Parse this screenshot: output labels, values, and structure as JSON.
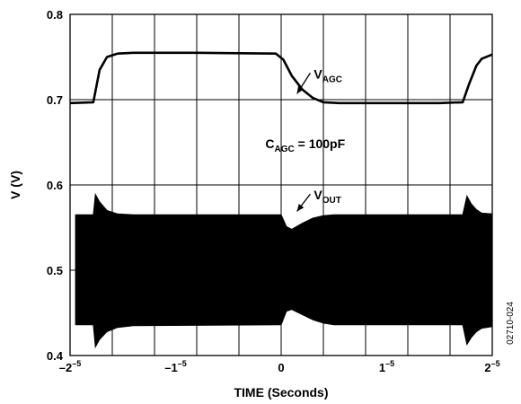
{
  "chart_data": {
    "type": "line",
    "xlabel": "TIME (Seconds)",
    "ylabel": "V (V)",
    "xlim": [
      -2e-05,
      2e-05
    ],
    "ylim": [
      0.4,
      0.8
    ],
    "grid": true,
    "x_ticks": [
      {
        "value": -2e-05,
        "base": "–2",
        "exp": "–5"
      },
      {
        "value": -1e-05,
        "base": "–1",
        "exp": "–5"
      },
      {
        "value": 0,
        "base": "0",
        "exp": ""
      },
      {
        "value": 1e-05,
        "base": "1",
        "exp": "–5"
      },
      {
        "value": 2e-05,
        "base": "2",
        "exp": "–5"
      }
    ],
    "y_ticks": [
      "0.4",
      "0.5",
      "0.6",
      "0.7",
      "0.8"
    ],
    "series": [
      {
        "name": "VAGC",
        "x": [
          -2e-05,
          -1.78e-05,
          -1.72e-05,
          -1.65e-05,
          -1.55e-05,
          -1.4e-05,
          -8e-06,
          -5e-07,
          2e-07,
          1e-06,
          2e-06,
          3e-06,
          4e-06,
          5.5e-06,
          1.5e-05,
          1.72e-05,
          1.78e-05,
          1.85e-05,
          1.9e-05,
          2e-05
        ],
        "values": [
          0.696,
          0.697,
          0.735,
          0.75,
          0.754,
          0.755,
          0.755,
          0.754,
          0.747,
          0.728,
          0.712,
          0.702,
          0.697,
          0.696,
          0.696,
          0.697,
          0.718,
          0.74,
          0.748,
          0.753
        ]
      },
      {
        "name": "VOUT",
        "envelope": {
          "x": [
            -1.95e-05,
            -1.78e-05,
            -1.76e-05,
            -1.72e-05,
            -1.65e-05,
            -1.55e-05,
            -1.4e-05,
            0,
            5e-07,
            1e-06,
            2e-06,
            3e-06,
            4e-06,
            5e-06,
            1.72e-05,
            1.76e-05,
            1.8e-05,
            1.85e-05,
            1.9e-05,
            2e-05
          ],
          "upper": [
            0.565,
            0.565,
            0.589,
            0.58,
            0.57,
            0.566,
            0.565,
            0.565,
            0.551,
            0.548,
            0.555,
            0.561,
            0.564,
            0.565,
            0.565,
            0.587,
            0.578,
            0.571,
            0.567,
            0.566
          ],
          "lower": [
            0.436,
            0.436,
            0.41,
            0.419,
            0.428,
            0.433,
            0.435,
            0.436,
            0.452,
            0.454,
            0.448,
            0.442,
            0.438,
            0.436,
            0.436,
            0.413,
            0.421,
            0.428,
            0.432,
            0.434
          ]
        }
      }
    ],
    "annotations": [
      {
        "base": "V",
        "sub": "AGC",
        "text_x": 3.1e-06,
        "text_y": 0.725,
        "arrow_to_x": 1.5e-06,
        "arrow_to_y": 0.707
      },
      {
        "base": "C",
        "sub": "AGC",
        "suffix": " = 100pF",
        "text_x": -1.5e-06,
        "text_y": 0.643
      },
      {
        "base": "V",
        "sub": "OUT",
        "text_x": 3.1e-06,
        "text_y": 0.583,
        "arrow_to_x": 1.5e-06,
        "arrow_to_y": 0.569
      }
    ],
    "code": "02710-024"
  }
}
